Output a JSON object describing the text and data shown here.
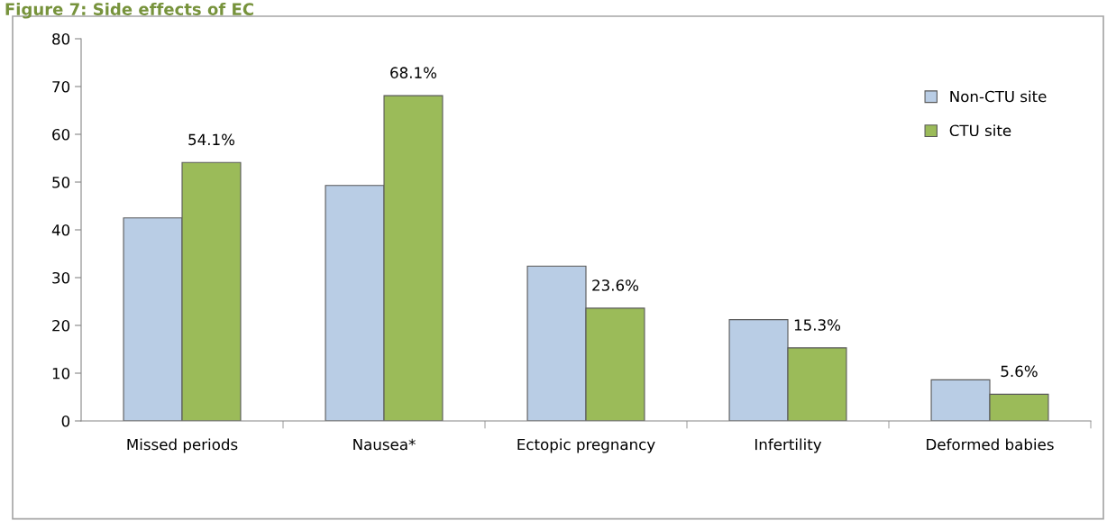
{
  "chart_data": {
    "type": "bar",
    "title": "Figure 7: Side effects of EC",
    "categories": [
      "Missed periods",
      "Nausea*",
      "Ectopic pregnancy",
      "Infertility",
      "Deformed babies"
    ],
    "series": [
      {
        "name": "Non-CTU site",
        "color": "#b9cde5",
        "values": [
          42.5,
          49.3,
          32.4,
          21.2,
          8.6
        ]
      },
      {
        "name": "CTU site",
        "color": "#9bbb59",
        "values": [
          54.1,
          68.1,
          23.6,
          15.3,
          5.6
        ],
        "value_labels": [
          "54.1%",
          "68.1%",
          "23.6%",
          "15.3%",
          "5.6%"
        ]
      }
    ],
    "ylim": [
      0,
      80
    ],
    "yticks": [
      0,
      10,
      20,
      30,
      40,
      50,
      60,
      70,
      80
    ],
    "grid": false,
    "legend": "top right"
  }
}
